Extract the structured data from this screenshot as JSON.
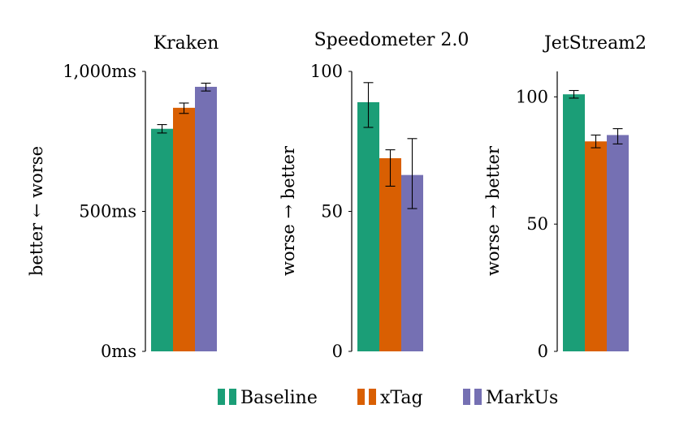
{
  "colors": {
    "Baseline": "#1b9e77",
    "xTag": "#d95f02",
    "MarkUs": "#7570b3"
  },
  "legend": [
    {
      "name": "Baseline",
      "color": "#1b9e77"
    },
    {
      "name": "xTag",
      "color": "#d95f02"
    },
    {
      "name": "MarkUs",
      "color": "#7570b3"
    }
  ],
  "chart_data": [
    {
      "type": "bar",
      "title": "Kraken",
      "ylabel": "better ← worse",
      "categories": [
        "Baseline",
        "xTag",
        "MarkUs"
      ],
      "values": [
        795,
        870,
        945
      ],
      "errors": [
        [
          780,
          810
        ],
        [
          850,
          887
        ],
        [
          930,
          958
        ]
      ],
      "ylim": [
        0,
        1000
      ],
      "yticks": [
        {
          "value": 0,
          "label": "0ms"
        },
        {
          "value": 500,
          "label": "500ms"
        },
        {
          "value": 1000,
          "label": "1,000ms"
        }
      ]
    },
    {
      "type": "bar",
      "title": "Speedometer 2.0",
      "ylabel": "worse → better",
      "categories": [
        "Baseline",
        "xTag",
        "MarkUs"
      ],
      "values": [
        89,
        69,
        63
      ],
      "errors": [
        [
          80,
          96
        ],
        [
          59,
          72
        ],
        [
          51,
          76
        ]
      ],
      "ylim": [
        0,
        100
      ],
      "yticks": [
        {
          "value": 0,
          "label": "0"
        },
        {
          "value": 50,
          "label": "50"
        },
        {
          "value": 100,
          "label": "100"
        }
      ]
    },
    {
      "type": "bar",
      "title": "JetStream2",
      "ylabel": "worse → better",
      "categories": [
        "Baseline",
        "xTag",
        "MarkUs"
      ],
      "values": [
        101,
        82.5,
        85
      ],
      "errors": [
        [
          99.5,
          102.5
        ],
        [
          80,
          85
        ],
        [
          81.5,
          87.5
        ]
      ],
      "ylim": [
        0,
        110
      ],
      "yticks": [
        {
          "value": 0,
          "label": "0"
        },
        {
          "value": 50,
          "label": "50"
        },
        {
          "value": 100,
          "label": "100"
        }
      ]
    }
  ]
}
